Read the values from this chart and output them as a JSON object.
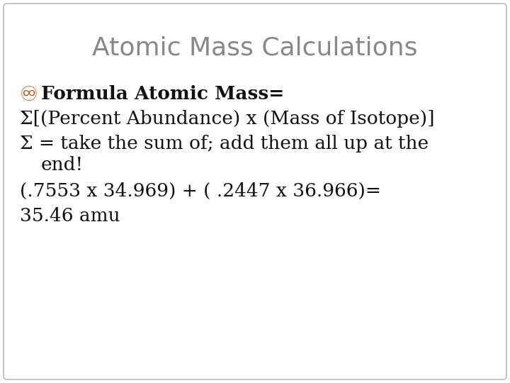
{
  "title": "Atomic Mass Calculations",
  "title_color": "#888888",
  "title_fontsize": 26,
  "background_color": "#ffffff",
  "border_color": "#bbbbbb",
  "bullet_color": "#cc4400",
  "line1_bold": "Formula Atomic Mass=",
  "line2": "Σ[(Percent Abundance) x (Mass of Isotope)]",
  "line3": "Σ = take the sum of; add them all up at the",
  "line4": "end!",
  "line5": "(.7553 x 34.969) + ( .2447 x 36.966)=",
  "line6": "35.46 amu",
  "body_fontsize": 19,
  "body_color": "#111111",
  "figwidth": 7.2,
  "figheight": 5.4,
  "dpi": 100
}
